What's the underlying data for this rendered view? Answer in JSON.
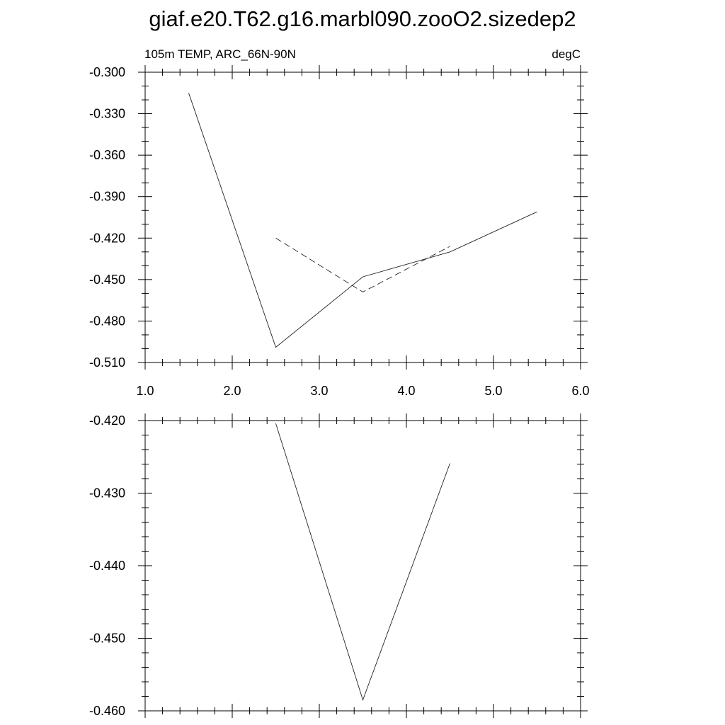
{
  "title": "giaf.e20.T62.g16.marbl090.zooO2.sizedep2",
  "chart_data": [
    {
      "type": "line",
      "left_label": "105m TEMP, ARC_66N-90N",
      "right_label": "degC",
      "xlim": [
        1.0,
        6.0
      ],
      "ylim": [
        -0.51,
        -0.3
      ],
      "xticks": [
        "1.0",
        "2.0",
        "3.0",
        "4.0",
        "5.0",
        "6.0"
      ],
      "yticks": [
        "-0.300",
        "-0.330",
        "-0.360",
        "-0.390",
        "-0.420",
        "-0.450",
        "-0.480",
        "-0.510"
      ],
      "grid": false,
      "series": [
        {
          "style": "solid",
          "x": [
            1.5,
            2.5,
            3.5,
            4.5,
            5.5
          ],
          "y": [
            -0.315,
            -0.499,
            -0.448,
            -0.43,
            -0.401
          ]
        },
        {
          "style": "dashed",
          "x": [
            2.5,
            3.5,
            4.5
          ],
          "y": [
            -0.42,
            -0.459,
            -0.426
          ]
        }
      ]
    },
    {
      "type": "line",
      "xlim": [
        1.0,
        6.0
      ],
      "ylim": [
        -0.46,
        -0.42
      ],
      "yticks": [
        "-0.420",
        "-0.430",
        "-0.440",
        "-0.450",
        "-0.460"
      ],
      "grid": false,
      "series": [
        {
          "style": "solid",
          "x": [
            2.5,
            3.5,
            4.5
          ],
          "y": [
            -0.4204,
            -0.4585,
            -0.4259
          ]
        }
      ]
    }
  ]
}
